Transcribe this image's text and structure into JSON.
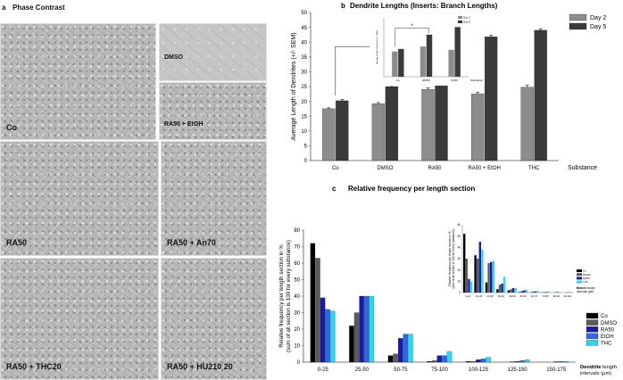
{
  "panel_a": {
    "letter": "a",
    "title": "Phase Contrast",
    "labels": {
      "co": "Co",
      "dmso": "DMSO",
      "ra50_etoh": "RA50 + EtOH",
      "ra50": "RA50",
      "ra50_an70": "RA50 + An70",
      "ra50_thc20": "RA50 + THC20",
      "ra50_hu210": "RA50 + HU210 20"
    }
  },
  "chart_data": [
    {
      "type": "bar",
      "panel": "b",
      "title": "Dendrite Lengths (Inserts: Branch Lengths)",
      "ylabel": "Average Length of Dendrites (+/- SEM)",
      "xlabel": "Substance",
      "ylim": [
        0,
        50
      ],
      "yticks": [
        "0",
        "5",
        "10",
        "15",
        "20",
        "25",
        "30",
        "35",
        "40",
        "45",
        "50"
      ],
      "categories": [
        "Co",
        "DMSO",
        "RA50",
        "RA50 + EtOH",
        "THC"
      ],
      "series": [
        {
          "name": "Day 2",
          "color": "#8c8c8c",
          "values": [
            17.5,
            19.2,
            24.0,
            22.5,
            24.8
          ],
          "errors": [
            0.3,
            0.4,
            0.5,
            0.6,
            0.6
          ]
        },
        {
          "name": "Day 5",
          "color": "#3a3a3a",
          "values": [
            20.2,
            25.0,
            36.5,
            41.8,
            44.0
          ],
          "errors": [
            0.4,
            0.4,
            0.5,
            0.5,
            0.5
          ]
        }
      ],
      "annotation": "*",
      "legend": "top-right",
      "inset": {
        "legend": [
          "Day 2",
          "Day 5"
        ],
        "categories": [
          "Co",
          "DMSO",
          "RA50"
        ],
        "xlabel": "Substance",
        "ylabel": "Average Length of Branches (+/- SEM)",
        "ylim": [
          0,
          35
        ],
        "series": [
          {
            "name": "Day 2",
            "color": "#8c8c8c",
            "values": [
              15.0,
              18.0,
              16.0
            ]
          },
          {
            "name": "Day 5",
            "color": "#3a3a3a",
            "values": [
              16.5,
              25.0,
              29.5
            ]
          }
        ],
        "annotation": "*"
      }
    },
    {
      "type": "bar",
      "panel": "c",
      "title": "Relative frequency per length section",
      "ylabel": "Relative frequency per length section in % (sum of all section is 100 for every substance)",
      "xlabel": "Dendrite length intervals (µm)",
      "xlabel_bold": "Dendrite",
      "xlabel_rest": "length",
      "xlabel_line2": "intervals (µm)",
      "ylim": [
        0,
        80
      ],
      "yticks": [
        "0",
        "10",
        "20",
        "30",
        "40",
        "50",
        "60",
        "70",
        "80"
      ],
      "categories": [
        "0-25",
        "25-50",
        "50-75",
        "75-100",
        "100-125",
        "125-150",
        "150-175"
      ],
      "series": [
        {
          "name": "Co",
          "color": "#000000",
          "values": [
            72,
            22,
            4,
            0.5,
            0.5,
            0,
            0
          ]
        },
        {
          "name": "DMSO",
          "color": "#5a5a5a",
          "values": [
            63,
            30,
            5,
            1,
            0.5,
            0.3,
            0
          ]
        },
        {
          "name": "RA50",
          "color": "#1a1aa8",
          "values": [
            39,
            40,
            14.5,
            4,
            1.5,
            0.5,
            0.3
          ]
        },
        {
          "name": "EtOH",
          "color": "#2e66e6",
          "values": [
            32,
            40,
            17,
            4,
            2,
            1,
            0.5
          ]
        },
        {
          "name": "THC",
          "color": "#26d9f5",
          "values": [
            31,
            40,
            17,
            6.5,
            3,
            1.5,
            0.5
          ]
        }
      ],
      "legend": "right",
      "inset": {
        "ylabel": "Relative frequency per length section in % (sum of all section is 100 for every substance)",
        "xlabel_bold": "Branch",
        "xlabel_rest": "length",
        "xlabel_line2": "intervals (µm)",
        "ylim": [
          0,
          60
        ],
        "yticks": [
          "0",
          "10",
          "20",
          "30",
          "40",
          "50",
          "60"
        ],
        "categories": [
          "0-10",
          "10-20",
          "20-30",
          "30-40",
          "40-50",
          "50-60",
          "60-70",
          "70-80",
          "80-90",
          "90-100"
        ],
        "series": [
          {
            "name": "Co",
            "color": "#000000",
            "values": [
              52,
              33,
              9,
              3,
              2,
              0.5,
              0.3,
              0.2,
              0,
              0
            ]
          },
          {
            "name": "DMSO",
            "color": "#5a5a5a",
            "values": [
              30,
              30,
              26,
              7,
              3,
              1.5,
              1,
              0.5,
              0.3,
              0.2
            ]
          },
          {
            "name": "RA50",
            "color": "#1a1aa8",
            "values": [
              12,
              45,
              27,
              8,
              4,
              2,
              1,
              0.5,
              0.5,
              0.3
            ]
          },
          {
            "name": "THC",
            "color": "#26d9f5",
            "values": [
              10,
              38,
              28,
              14,
              4,
              2.5,
              1.5,
              1,
              0.5,
              0.5
            ]
          }
        ]
      }
    }
  ],
  "panel_letters": {
    "b": "b",
    "c": "c"
  }
}
